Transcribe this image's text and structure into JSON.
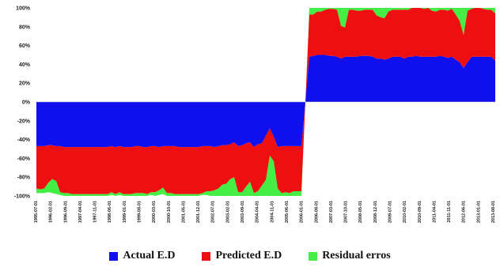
{
  "chart_data": {
    "type": "area",
    "stacked": true,
    "ylim": [
      -100,
      100
    ],
    "yunit": "%",
    "y_ticks": [
      "100%",
      "80%",
      "60%",
      "40%",
      "20%",
      "0%",
      "-20%",
      "-40%",
      "-60%",
      "-80%",
      "-100%"
    ],
    "x_tick_labels": [
      "1995-07-01",
      "1996-02-01",
      "1996-09-01",
      "1997-04-01",
      "1997-11-01",
      "1998-06-01",
      "1999-01-01",
      "1999-08-01",
      "2000-03-01",
      "2000-10-01",
      "2001-05-01",
      "2001-12-01",
      "2002-07-01",
      "2003-02-01",
      "2003-09-01",
      "2004-04-01",
      "2004-11-01",
      "2005-06-01",
      "2006-01-01",
      "2006-08-01",
      "2007-03-01",
      "2007-10-01",
      "2008-05-01",
      "2008-12-01",
      "2009-07-01",
      "2010-02-01",
      "2010-09-01",
      "2011-04-01",
      "2011-11-01",
      "2012-06-01",
      "2013-01-01",
      "2013-08-01"
    ],
    "legend_position": "bottom",
    "series": [
      {
        "name": "Actual E.D",
        "color": "#1010ee"
      },
      {
        "name": "Predicted E.D",
        "color": "#ee1010"
      },
      {
        "name": "Residual erros",
        "color": "#44ee44"
      }
    ],
    "actual": [
      -47,
      -47,
      -47,
      -46,
      -46,
      -47,
      -47,
      -48,
      -48,
      -48,
      -48,
      -48,
      -48,
      -48,
      -48,
      -48,
      -48,
      -48,
      -48,
      -47,
      -48,
      -47,
      -48,
      -48,
      -48,
      -47,
      -47,
      -48,
      -48,
      -47,
      -47,
      -48,
      -47,
      -47,
      -47,
      -47,
      -48,
      -48,
      -48,
      -48,
      -48,
      -48,
      -47,
      -47,
      -47,
      -48,
      -47,
      -46,
      -46,
      -45,
      -43,
      -47,
      -46,
      -44,
      -43,
      -48,
      -45,
      -44,
      -36,
      -28,
      -37,
      -48,
      -47,
      -47,
      -47,
      -47,
      -47,
      -47,
      0,
      48,
      49,
      50,
      50,
      50,
      49,
      49,
      48,
      46,
      48,
      48,
      48,
      48,
      49,
      49,
      49,
      48,
      46,
      46,
      45,
      46,
      48,
      48,
      48,
      46,
      48,
      48,
      49,
      48,
      48,
      48,
      48,
      48,
      49,
      48,
      47,
      48,
      45,
      42,
      36,
      42,
      48,
      48,
      48,
      48,
      48,
      48,
      44
    ],
    "predicted": [
      -45,
      -46,
      -45,
      -40,
      -36,
      -37,
      -49,
      -49,
      -49,
      -50,
      -50,
      -50,
      -50,
      -50,
      -50,
      -50,
      -50,
      -50,
      -50,
      -49,
      -50,
      -49,
      -50,
      -50,
      -50,
      -50,
      -50,
      -49,
      -50,
      -49,
      -49,
      -46,
      -44,
      -50,
      -50,
      -51,
      -50,
      -50,
      -50,
      -50,
      -50,
      -50,
      -50,
      -48,
      -48,
      -46,
      -45,
      -42,
      -41,
      -37,
      -37,
      -49,
      -50,
      -46,
      -42,
      -49,
      -50,
      -45,
      -47,
      -29,
      -26,
      -44,
      -50,
      -49,
      -50,
      -48,
      -48,
      -48,
      0,
      45,
      44,
      46,
      46,
      48,
      50,
      50,
      50,
      35,
      31,
      50,
      50,
      49,
      48,
      49,
      49,
      50,
      46,
      44,
      44,
      50,
      50,
      50,
      50,
      52,
      50,
      52,
      51,
      52,
      51,
      52,
      49,
      48,
      49,
      50,
      50,
      51,
      48,
      44,
      35,
      55,
      51,
      52,
      52,
      51,
      50,
      50,
      50
    ],
    "residual": [
      -5,
      -4,
      -5,
      -10,
      -15,
      -14,
      -3,
      -3,
      -3,
      -2,
      -2,
      -2,
      -2,
      -2,
      -2,
      -2,
      -2,
      -2,
      -2,
      -3,
      -2,
      -3,
      -2,
      -2,
      -2,
      -3,
      -3,
      -3,
      -2,
      -3,
      -4,
      -5,
      -7,
      -3,
      -3,
      -2,
      -2,
      -2,
      -2,
      -2,
      -2,
      -2,
      -2,
      -4,
      -5,
      -6,
      -8,
      -12,
      -13,
      -18,
      -20,
      -4,
      -4,
      -10,
      -15,
      -3,
      -5,
      -11,
      -17,
      -43,
      -37,
      -8,
      -3,
      -4,
      -3,
      -5,
      -5,
      -5,
      0,
      7,
      7,
      4,
      4,
      2,
      1,
      1,
      2,
      19,
      21,
      2,
      2,
      3,
      3,
      2,
      2,
      2,
      8,
      10,
      11,
      4,
      2,
      2,
      2,
      2,
      2,
      0,
      0,
      0,
      1,
      0,
      3,
      4,
      2,
      2,
      3,
      1,
      7,
      14,
      29,
      3,
      1,
      0,
      0,
      1,
      2,
      2,
      6
    ]
  }
}
